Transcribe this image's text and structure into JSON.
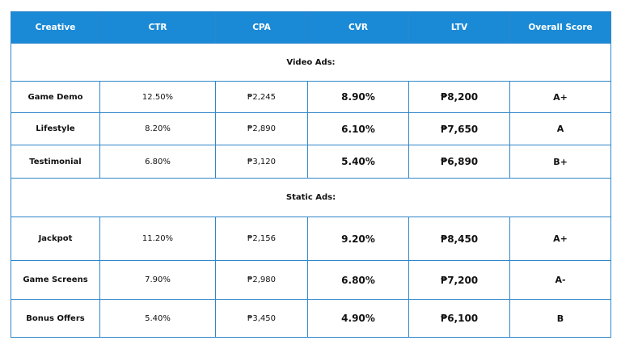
{
  "table": {
    "columns": [
      "Creative",
      "CTR",
      "CPA",
      "CVR",
      "LTV",
      "Overall Score"
    ],
    "sections": [
      {
        "title": "Video Ads:",
        "rows": [
          [
            "Game Demo",
            "12.50%",
            "₱2,245",
            "8.90%",
            "₱8,200",
            "A+"
          ],
          [
            "Lifestyle",
            "8.20%",
            "₱2,890",
            "6.10%",
            "₱7,650",
            "A"
          ],
          [
            "Testimonial",
            "6.80%",
            "₱3,120",
            "5.40%",
            "₱6,890",
            "B+"
          ]
        ]
      },
      {
        "title": "Static Ads:",
        "rows": [
          [
            "Jackpot",
            "11.20%",
            "₱2,156",
            "9.20%",
            "₱8,450",
            "A+"
          ],
          [
            "Game Screens",
            "7.90%",
            "₱2,980",
            "6.80%",
            "₱7,200",
            "A-"
          ],
          [
            "Bonus Offers",
            "5.40%",
            "₱3,450",
            "4.90%",
            "₱6,100",
            "B"
          ]
        ]
      }
    ]
  }
}
